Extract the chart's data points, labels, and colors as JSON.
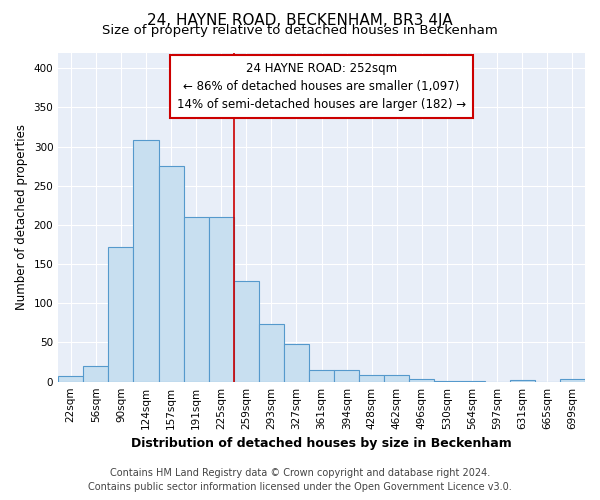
{
  "title": "24, HAYNE ROAD, BECKENHAM, BR3 4JA",
  "subtitle": "Size of property relative to detached houses in Beckenham",
  "xlabel": "Distribution of detached houses by size in Beckenham",
  "ylabel": "Number of detached properties",
  "footer_line1": "Contains HM Land Registry data © Crown copyright and database right 2024.",
  "footer_line2": "Contains public sector information licensed under the Open Government Licence v3.0.",
  "bar_labels": [
    "22sqm",
    "56sqm",
    "90sqm",
    "124sqm",
    "157sqm",
    "191sqm",
    "225sqm",
    "259sqm",
    "293sqm",
    "327sqm",
    "361sqm",
    "394sqm",
    "428sqm",
    "462sqm",
    "496sqm",
    "530sqm",
    "564sqm",
    "597sqm",
    "631sqm",
    "665sqm",
    "699sqm"
  ],
  "bar_values": [
    7,
    20,
    172,
    308,
    275,
    210,
    210,
    128,
    73,
    48,
    15,
    15,
    9,
    8,
    3,
    1,
    1,
    0,
    2,
    0,
    4
  ],
  "bar_color": "#c8dff0",
  "bar_edge_color": "#5599cc",
  "vline_x_idx": 7,
  "vline_color": "#cc0000",
  "annotation_text_line1": "24 HAYNE ROAD: 252sqm",
  "annotation_text_line2": "← 86% of detached houses are smaller (1,097)",
  "annotation_text_line3": "14% of semi-detached houses are larger (182) →",
  "ylim": [
    0,
    420
  ],
  "yticks": [
    0,
    50,
    100,
    150,
    200,
    250,
    300,
    350,
    400
  ],
  "bg_color": "#ffffff",
  "plot_bg_color": "#e8eef8",
  "title_fontsize": 11,
  "subtitle_fontsize": 9.5,
  "xlabel_fontsize": 9,
  "ylabel_fontsize": 8.5,
  "tick_fontsize": 7.5,
  "footer_fontsize": 7,
  "annotation_fontsize": 8.5
}
